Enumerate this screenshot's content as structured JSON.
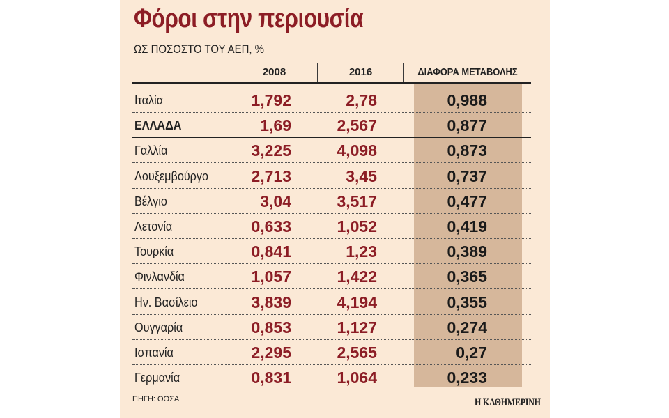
{
  "chart_data": {
    "type": "table",
    "title": "Φόροι στην περιουσία",
    "subtitle": "ΩΣ ΠΟΣΟΣΤΟ ΤΟΥ ΑΕΠ, %",
    "columns": [
      "2008",
      "2016",
      "ΔΙΑΦΟΡΑ ΜΕΤΑΒΟΛΗΣ"
    ],
    "rows": [
      {
        "country": "Ιταλία",
        "v2008": "1,792",
        "v2016": "2,78",
        "diff": "0,988",
        "bold": false
      },
      {
        "country": "ΕΛΛΑΔΑ",
        "v2008": "1,69",
        "v2016": "2,567",
        "diff": "0,877",
        "bold": true
      },
      {
        "country": "Γαλλία",
        "v2008": "3,225",
        "v2016": "4,098",
        "diff": "0,873",
        "bold": false
      },
      {
        "country": "Λουξεμβούργο",
        "v2008": "2,713",
        "v2016": "3,45",
        "diff": "0,737",
        "bold": false
      },
      {
        "country": "Βέλγιο",
        "v2008": "3,04",
        "v2016": "3,517",
        "diff": "0,477",
        "bold": false
      },
      {
        "country": "Λετονία",
        "v2008": "0,633",
        "v2016": "1,052",
        "diff": "0,419",
        "bold": false
      },
      {
        "country": "Τουρκία",
        "v2008": "0,841",
        "v2016": "1,23",
        "diff": "0,389",
        "bold": false
      },
      {
        "country": "Φινλανδία",
        "v2008": "1,057",
        "v2016": "1,422",
        "diff": "0,365",
        "bold": false
      },
      {
        "country": "Ην. Βασίλειο",
        "v2008": "3,839",
        "v2016": "4,194",
        "diff": "0,355",
        "bold": false
      },
      {
        "country": "Ουγγαρία",
        "v2008": "0,853",
        "v2016": "1,127",
        "diff": "0,274",
        "bold": false
      },
      {
        "country": "Ισπανία",
        "v2008": "2,295",
        "v2016": "2,565",
        "diff": "0,27",
        "bold": false
      },
      {
        "country": "Γερμανία",
        "v2008": "0,831",
        "v2016": "1,064",
        "diff": "0,233",
        "bold": false
      }
    ],
    "source": "ΠΗΓΗ: ΟΟΣΑ",
    "brand": "Η ΚΑΘΗΜΕΡΙΝΗ",
    "colors": {
      "background": "#fbe9d6",
      "value_red": "#8c1d25",
      "highlight_column": "#d6b79b"
    }
  }
}
